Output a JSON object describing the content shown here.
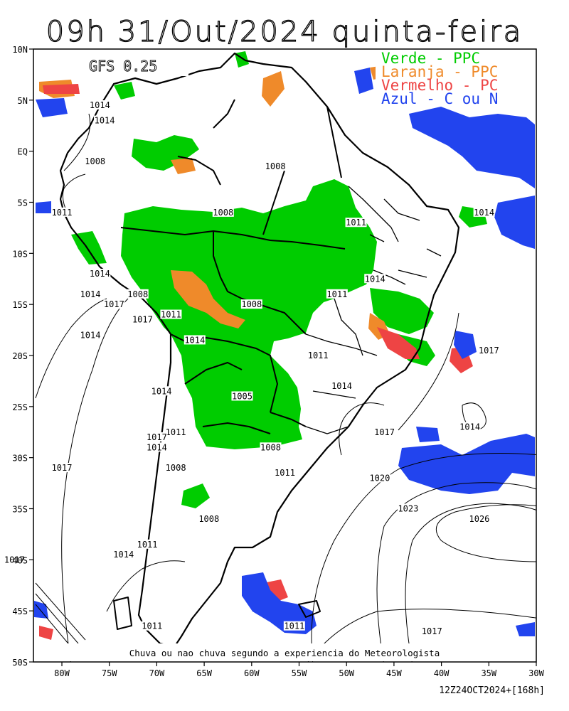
{
  "title": "09h 31/Out/2024 quinta-feira",
  "model": "GFS 0.25",
  "caption": "Chuva ou nao chuva segundo a experiencia do Meteorologista",
  "run_info": "12Z24OCT2024+[168h]",
  "legend": [
    {
      "label": "Verde - PPC",
      "color": "#00cc00"
    },
    {
      "label": "Laranja - PPC",
      "color": "#ef8a2a"
    },
    {
      "label": "Vermelho - PC",
      "color": "#ee4444"
    },
    {
      "label": "Azul - C ou N",
      "color": "#2244ee"
    }
  ],
  "y_ticks": [
    "10N",
    "5N",
    "EQ",
    "5S",
    "10S",
    "15S",
    "20S",
    "25S",
    "30S",
    "35S",
    "40S",
    "45S",
    "50S"
  ],
  "x_ticks": [
    "80W",
    "75W",
    "70W",
    "65W",
    "60W",
    "55W",
    "50W",
    "45W",
    "40W",
    "35W",
    "30W"
  ],
  "isobars": [
    {
      "label": "1014",
      "lon": -76,
      "lat": 4.5
    },
    {
      "label": "1014",
      "lon": -75.5,
      "lat": 3
    },
    {
      "label": "1008",
      "lon": -76.5,
      "lat": -1
    },
    {
      "label": "1008",
      "lon": -57.5,
      "lat": -1.5
    },
    {
      "label": "1011",
      "lon": -80,
      "lat": -6
    },
    {
      "label": "1008",
      "lon": -63,
      "lat": -6
    },
    {
      "label": "1011",
      "lon": -49,
      "lat": -7
    },
    {
      "label": "1014",
      "lon": -35.5,
      "lat": -6
    },
    {
      "label": "1014",
      "lon": -76,
      "lat": -12
    },
    {
      "label": "1014",
      "lon": -47,
      "lat": -12.5
    },
    {
      "label": "1014",
      "lon": -77,
      "lat": -14
    },
    {
      "label": "1008",
      "lon": -72,
      "lat": -14
    },
    {
      "label": "1011",
      "lon": -51,
      "lat": -14
    },
    {
      "label": "1017",
      "lon": -74.5,
      "lat": -15
    },
    {
      "label": "1008",
      "lon": -60,
      "lat": -15
    },
    {
      "label": "1011",
      "lon": -68.5,
      "lat": -16
    },
    {
      "label": "1017",
      "lon": -71.5,
      "lat": -16.5
    },
    {
      "label": "1014",
      "lon": -77,
      "lat": -18
    },
    {
      "label": "1014",
      "lon": -66,
      "lat": -18.5
    },
    {
      "label": "1017",
      "lon": -35,
      "lat": -19.5
    },
    {
      "label": "1011",
      "lon": -53,
      "lat": -20
    },
    {
      "label": "1014",
      "lon": -50.5,
      "lat": -23
    },
    {
      "label": "1014",
      "lon": -69.5,
      "lat": -23.5
    },
    {
      "label": "1005",
      "lon": -61,
      "lat": -24
    },
    {
      "label": "1017",
      "lon": -46,
      "lat": -27.5
    },
    {
      "label": "1014",
      "lon": -37,
      "lat": -27
    },
    {
      "label": "1011",
      "lon": -68,
      "lat": -27.5
    },
    {
      "label": "1017",
      "lon": -70,
      "lat": -28
    },
    {
      "label": "1014",
      "lon": -70,
      "lat": -29
    },
    {
      "label": "1008",
      "lon": -58,
      "lat": -29
    },
    {
      "label": "1017",
      "lon": -80,
      "lat": -31
    },
    {
      "label": "1008",
      "lon": -68,
      "lat": -31
    },
    {
      "label": "1011",
      "lon": -56.5,
      "lat": -31.5
    },
    {
      "label": "1020",
      "lon": -46.5,
      "lat": -32
    },
    {
      "label": "1023",
      "lon": -43.5,
      "lat": -35
    },
    {
      "label": "1026",
      "lon": -36,
      "lat": -36
    },
    {
      "label": "1008",
      "lon": -64.5,
      "lat": -36
    },
    {
      "label": "1011",
      "lon": -71,
      "lat": -38.5
    },
    {
      "label": "1014",
      "lon": -73.5,
      "lat": -39.5
    },
    {
      "label": "1017",
      "lon": -85,
      "lat": -40
    },
    {
      "label": "1011",
      "lon": -70.5,
      "lat": -46.5
    },
    {
      "label": "1011",
      "lon": -55.5,
      "lat": -46.5
    },
    {
      "label": "1017",
      "lon": -41,
      "lat": -47
    }
  ]
}
